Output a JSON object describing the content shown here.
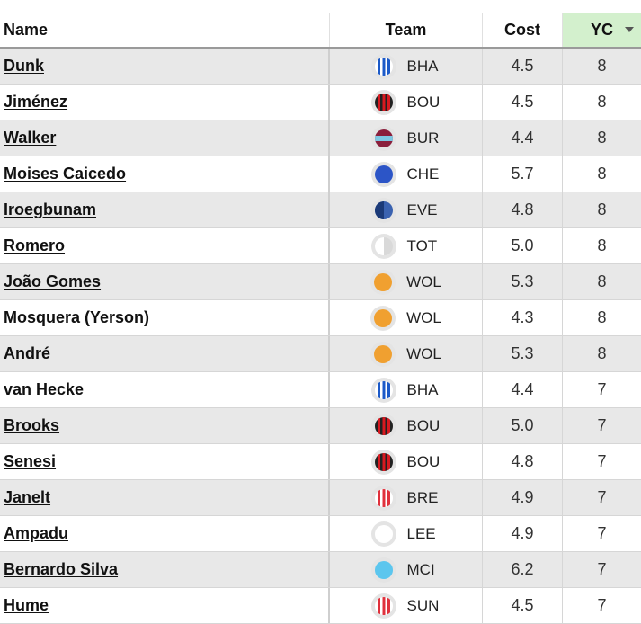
{
  "header": {
    "name": "Name",
    "team": "Team",
    "cost": "Cost",
    "yc": "YC"
  },
  "rows": [
    {
      "name": "Dunk",
      "team": "BHA",
      "badge": "stripes-blue",
      "cost": "4.5",
      "yc": "8"
    },
    {
      "name": "Jiménez",
      "team": "BOU",
      "badge": "stripes-red-black",
      "cost": "4.5",
      "yc": "8"
    },
    {
      "name": "Walker",
      "team": "BUR",
      "badge": "claret-sky",
      "cost": "4.4",
      "yc": "8"
    },
    {
      "name": "Moises Caicedo",
      "team": "CHE",
      "badge": "solid-blue",
      "cost": "5.7",
      "yc": "8"
    },
    {
      "name": "Iroegbunam",
      "team": "EVE",
      "badge": "half-navy",
      "cost": "4.8",
      "yc": "8"
    },
    {
      "name": "Romero",
      "team": "TOT",
      "badge": "half-white",
      "cost": "5.0",
      "yc": "8"
    },
    {
      "name": "João Gomes",
      "team": "WOL",
      "badge": "solid-orange",
      "cost": "5.3",
      "yc": "8"
    },
    {
      "name": "Mosquera (Yerson)",
      "team": "WOL",
      "badge": "solid-orange",
      "cost": "4.3",
      "yc": "8"
    },
    {
      "name": "André",
      "team": "WOL",
      "badge": "solid-orange",
      "cost": "5.3",
      "yc": "8"
    },
    {
      "name": "van Hecke",
      "team": "BHA",
      "badge": "stripes-blue",
      "cost": "4.4",
      "yc": "7"
    },
    {
      "name": "Brooks",
      "team": "BOU",
      "badge": "stripes-red-black",
      "cost": "5.0",
      "yc": "7"
    },
    {
      "name": "Senesi",
      "team": "BOU",
      "badge": "stripes-red-black",
      "cost": "4.8",
      "yc": "7"
    },
    {
      "name": "Janelt",
      "team": "BRE",
      "badge": "stripes-red-white",
      "cost": "4.9",
      "yc": "7"
    },
    {
      "name": "Ampadu",
      "team": "LEE",
      "badge": "solid-white",
      "cost": "4.9",
      "yc": "7"
    },
    {
      "name": "Bernardo Silva",
      "team": "MCI",
      "badge": "solid-sky",
      "cost": "6.2",
      "yc": "7"
    },
    {
      "name": "Hume",
      "team": "SUN",
      "badge": "stripes-red-white",
      "cost": "4.5",
      "yc": "7"
    }
  ],
  "sort": {
    "column": "YC",
    "direction": "descending"
  },
  "colors": {
    "row_alt": "#e8e8e8",
    "header_sorted": "#d3f0cd",
    "bha_blue": "#1c5ac8",
    "bou_red": "#d71920",
    "bur_claret": "#8a1f3c",
    "bur_sky": "#7ec8e3",
    "che_blue": "#2c55c7",
    "eve_navy": "#1b3a78",
    "wol_orange": "#f0a030",
    "bre_red": "#e0313c",
    "mci_sky": "#5cc6ee"
  }
}
